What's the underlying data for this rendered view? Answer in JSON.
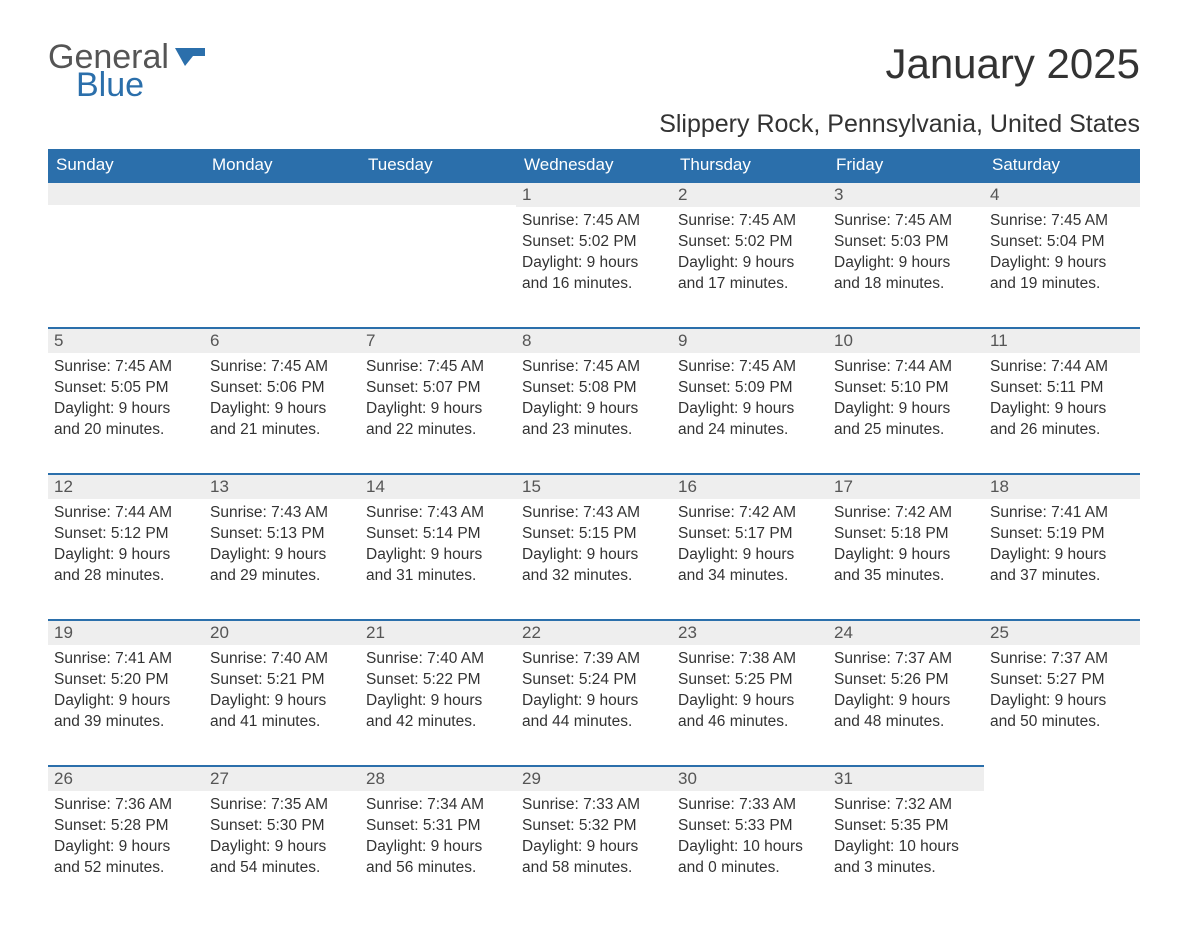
{
  "logo": {
    "text_general": "General",
    "text_blue": "Blue",
    "shape_color": "#2b6fab"
  },
  "title": "January 2025",
  "location": "Slippery Rock, Pennsylvania, United States",
  "colors": {
    "header_bg": "#2b6fab",
    "header_text": "#ffffff",
    "daynum_bg": "#eeeeee",
    "border_top": "#2b6fab",
    "body_text": "#333333",
    "logo_gray": "#555555"
  },
  "weekdays": [
    "Sunday",
    "Monday",
    "Tuesday",
    "Wednesday",
    "Thursday",
    "Friday",
    "Saturday"
  ],
  "leading_blanks": 3,
  "days": [
    {
      "n": "1",
      "sunrise": "Sunrise: 7:45 AM",
      "sunset": "Sunset: 5:02 PM",
      "daylight1": "Daylight: 9 hours",
      "daylight2": "and 16 minutes."
    },
    {
      "n": "2",
      "sunrise": "Sunrise: 7:45 AM",
      "sunset": "Sunset: 5:02 PM",
      "daylight1": "Daylight: 9 hours",
      "daylight2": "and 17 minutes."
    },
    {
      "n": "3",
      "sunrise": "Sunrise: 7:45 AM",
      "sunset": "Sunset: 5:03 PM",
      "daylight1": "Daylight: 9 hours",
      "daylight2": "and 18 minutes."
    },
    {
      "n": "4",
      "sunrise": "Sunrise: 7:45 AM",
      "sunset": "Sunset: 5:04 PM",
      "daylight1": "Daylight: 9 hours",
      "daylight2": "and 19 minutes."
    },
    {
      "n": "5",
      "sunrise": "Sunrise: 7:45 AM",
      "sunset": "Sunset: 5:05 PM",
      "daylight1": "Daylight: 9 hours",
      "daylight2": "and 20 minutes."
    },
    {
      "n": "6",
      "sunrise": "Sunrise: 7:45 AM",
      "sunset": "Sunset: 5:06 PM",
      "daylight1": "Daylight: 9 hours",
      "daylight2": "and 21 minutes."
    },
    {
      "n": "7",
      "sunrise": "Sunrise: 7:45 AM",
      "sunset": "Sunset: 5:07 PM",
      "daylight1": "Daylight: 9 hours",
      "daylight2": "and 22 minutes."
    },
    {
      "n": "8",
      "sunrise": "Sunrise: 7:45 AM",
      "sunset": "Sunset: 5:08 PM",
      "daylight1": "Daylight: 9 hours",
      "daylight2": "and 23 minutes."
    },
    {
      "n": "9",
      "sunrise": "Sunrise: 7:45 AM",
      "sunset": "Sunset: 5:09 PM",
      "daylight1": "Daylight: 9 hours",
      "daylight2": "and 24 minutes."
    },
    {
      "n": "10",
      "sunrise": "Sunrise: 7:44 AM",
      "sunset": "Sunset: 5:10 PM",
      "daylight1": "Daylight: 9 hours",
      "daylight2": "and 25 minutes."
    },
    {
      "n": "11",
      "sunrise": "Sunrise: 7:44 AM",
      "sunset": "Sunset: 5:11 PM",
      "daylight1": "Daylight: 9 hours",
      "daylight2": "and 26 minutes."
    },
    {
      "n": "12",
      "sunrise": "Sunrise: 7:44 AM",
      "sunset": "Sunset: 5:12 PM",
      "daylight1": "Daylight: 9 hours",
      "daylight2": "and 28 minutes."
    },
    {
      "n": "13",
      "sunrise": "Sunrise: 7:43 AM",
      "sunset": "Sunset: 5:13 PM",
      "daylight1": "Daylight: 9 hours",
      "daylight2": "and 29 minutes."
    },
    {
      "n": "14",
      "sunrise": "Sunrise: 7:43 AM",
      "sunset": "Sunset: 5:14 PM",
      "daylight1": "Daylight: 9 hours",
      "daylight2": "and 31 minutes."
    },
    {
      "n": "15",
      "sunrise": "Sunrise: 7:43 AM",
      "sunset": "Sunset: 5:15 PM",
      "daylight1": "Daylight: 9 hours",
      "daylight2": "and 32 minutes."
    },
    {
      "n": "16",
      "sunrise": "Sunrise: 7:42 AM",
      "sunset": "Sunset: 5:17 PM",
      "daylight1": "Daylight: 9 hours",
      "daylight2": "and 34 minutes."
    },
    {
      "n": "17",
      "sunrise": "Sunrise: 7:42 AM",
      "sunset": "Sunset: 5:18 PM",
      "daylight1": "Daylight: 9 hours",
      "daylight2": "and 35 minutes."
    },
    {
      "n": "18",
      "sunrise": "Sunrise: 7:41 AM",
      "sunset": "Sunset: 5:19 PM",
      "daylight1": "Daylight: 9 hours",
      "daylight2": "and 37 minutes."
    },
    {
      "n": "19",
      "sunrise": "Sunrise: 7:41 AM",
      "sunset": "Sunset: 5:20 PM",
      "daylight1": "Daylight: 9 hours",
      "daylight2": "and 39 minutes."
    },
    {
      "n": "20",
      "sunrise": "Sunrise: 7:40 AM",
      "sunset": "Sunset: 5:21 PM",
      "daylight1": "Daylight: 9 hours",
      "daylight2": "and 41 minutes."
    },
    {
      "n": "21",
      "sunrise": "Sunrise: 7:40 AM",
      "sunset": "Sunset: 5:22 PM",
      "daylight1": "Daylight: 9 hours",
      "daylight2": "and 42 minutes."
    },
    {
      "n": "22",
      "sunrise": "Sunrise: 7:39 AM",
      "sunset": "Sunset: 5:24 PM",
      "daylight1": "Daylight: 9 hours",
      "daylight2": "and 44 minutes."
    },
    {
      "n": "23",
      "sunrise": "Sunrise: 7:38 AM",
      "sunset": "Sunset: 5:25 PM",
      "daylight1": "Daylight: 9 hours",
      "daylight2": "and 46 minutes."
    },
    {
      "n": "24",
      "sunrise": "Sunrise: 7:37 AM",
      "sunset": "Sunset: 5:26 PM",
      "daylight1": "Daylight: 9 hours",
      "daylight2": "and 48 minutes."
    },
    {
      "n": "25",
      "sunrise": "Sunrise: 7:37 AM",
      "sunset": "Sunset: 5:27 PM",
      "daylight1": "Daylight: 9 hours",
      "daylight2": "and 50 minutes."
    },
    {
      "n": "26",
      "sunrise": "Sunrise: 7:36 AM",
      "sunset": "Sunset: 5:28 PM",
      "daylight1": "Daylight: 9 hours",
      "daylight2": "and 52 minutes."
    },
    {
      "n": "27",
      "sunrise": "Sunrise: 7:35 AM",
      "sunset": "Sunset: 5:30 PM",
      "daylight1": "Daylight: 9 hours",
      "daylight2": "and 54 minutes."
    },
    {
      "n": "28",
      "sunrise": "Sunrise: 7:34 AM",
      "sunset": "Sunset: 5:31 PM",
      "daylight1": "Daylight: 9 hours",
      "daylight2": "and 56 minutes."
    },
    {
      "n": "29",
      "sunrise": "Sunrise: 7:33 AM",
      "sunset": "Sunset: 5:32 PM",
      "daylight1": "Daylight: 9 hours",
      "daylight2": "and 58 minutes."
    },
    {
      "n": "30",
      "sunrise": "Sunrise: 7:33 AM",
      "sunset": "Sunset: 5:33 PM",
      "daylight1": "Daylight: 10 hours",
      "daylight2": "and 0 minutes."
    },
    {
      "n": "31",
      "sunrise": "Sunrise: 7:32 AM",
      "sunset": "Sunset: 5:35 PM",
      "daylight1": "Daylight: 10 hours",
      "daylight2": "and 3 minutes."
    }
  ]
}
